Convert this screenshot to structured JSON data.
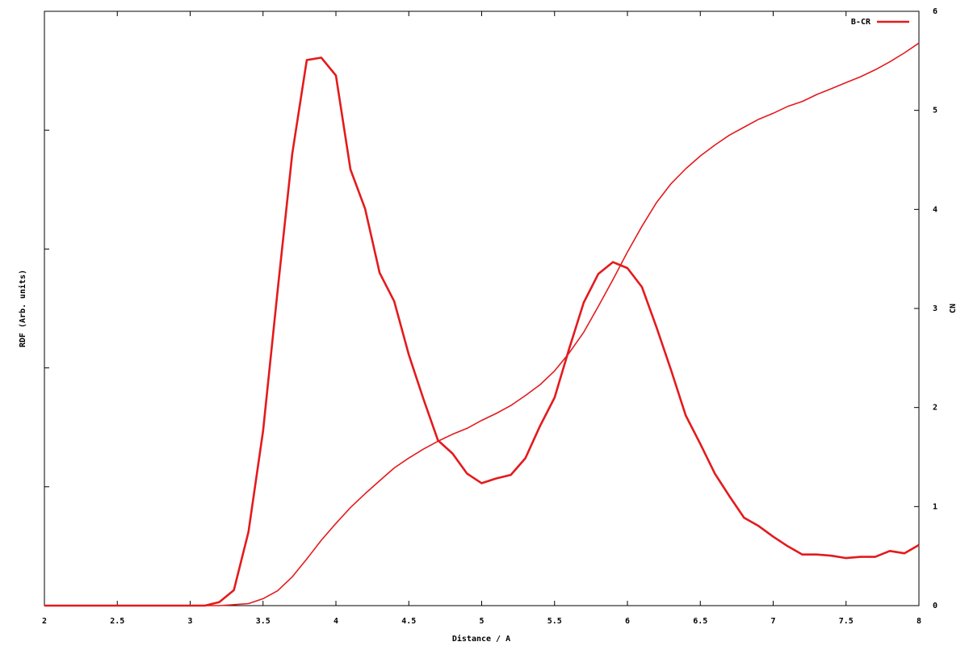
{
  "chart_data": {
    "type": "line",
    "xlabel": "Distance / A",
    "ylabel": "RDF (Arb. units)",
    "y2label": "CN",
    "x": [
      2.0,
      2.1,
      2.2,
      2.3,
      2.4,
      2.5,
      2.6,
      2.7,
      2.8,
      2.9,
      3.0,
      3.1,
      3.2,
      3.3,
      3.4,
      3.5,
      3.6,
      3.7,
      3.8,
      3.9,
      4.0,
      4.1,
      4.2,
      4.3,
      4.4,
      4.5,
      4.6,
      4.7,
      4.8,
      4.9,
      5.0,
      5.1,
      5.2,
      5.3,
      5.4,
      5.5,
      5.6,
      5.7,
      5.8,
      5.9,
      6.0,
      6.1,
      6.2,
      6.3,
      6.4,
      6.5,
      6.6,
      6.7,
      6.8,
      6.9,
      7.0,
      7.1,
      7.2,
      7.3,
      7.4,
      7.5,
      7.6,
      7.7,
      7.8,
      7.9,
      8.0
    ],
    "series": [
      {
        "name": "B-CR",
        "color": "#e41a1c",
        "axis": "y",
        "values": [
          0,
          0,
          0,
          0,
          0,
          0,
          0,
          0,
          0,
          0,
          0,
          0,
          0.03,
          0.13,
          0.62,
          1.47,
          2.65,
          3.8,
          4.59,
          4.61,
          4.46,
          3.67,
          3.34,
          2.8,
          2.56,
          2.11,
          1.74,
          1.39,
          1.28,
          1.11,
          1.03,
          1.07,
          1.1,
          1.24,
          1.51,
          1.75,
          2.16,
          2.55,
          2.79,
          2.89,
          2.84,
          2.68,
          2.34,
          1.98,
          1.6,
          1.36,
          1.11,
          0.92,
          0.74,
          0.67,
          0.58,
          0.5,
          0.43,
          0.43,
          0.42,
          0.4,
          0.41,
          0.41,
          0.46,
          0.44,
          0.51
        ]
      },
      {
        "color": "#e41a1c",
        "axis": "y2",
        "values": [
          0,
          0,
          0,
          0,
          0,
          0,
          0,
          0,
          0,
          0,
          0,
          0,
          0,
          0.01,
          0.02,
          0.07,
          0.15,
          0.29,
          0.47,
          0.66,
          0.83,
          0.99,
          1.13,
          1.26,
          1.39,
          1.49,
          1.58,
          1.66,
          1.73,
          1.79,
          1.87,
          1.94,
          2.02,
          2.12,
          2.23,
          2.37,
          2.55,
          2.76,
          3.02,
          3.29,
          3.57,
          3.83,
          4.07,
          4.26,
          4.41,
          4.54,
          4.65,
          4.75,
          4.83,
          4.91,
          4.97,
          5.04,
          5.09,
          5.16,
          5.22,
          5.28,
          5.34,
          5.41,
          5.49,
          5.58,
          5.68
        ]
      }
    ],
    "xlim": [
      2,
      8
    ],
    "xticks": [
      2,
      2.5,
      3,
      3.5,
      4,
      4.5,
      5,
      5.5,
      6,
      6.5,
      7,
      7.5,
      8
    ],
    "ylim": [
      0,
      5
    ],
    "yticks": [
      0,
      1,
      2,
      3,
      4,
      5
    ],
    "y2lim": [
      0,
      6
    ],
    "y2ticks": [
      0,
      1,
      2,
      3,
      4,
      5,
      6
    ],
    "legend": "top right"
  }
}
